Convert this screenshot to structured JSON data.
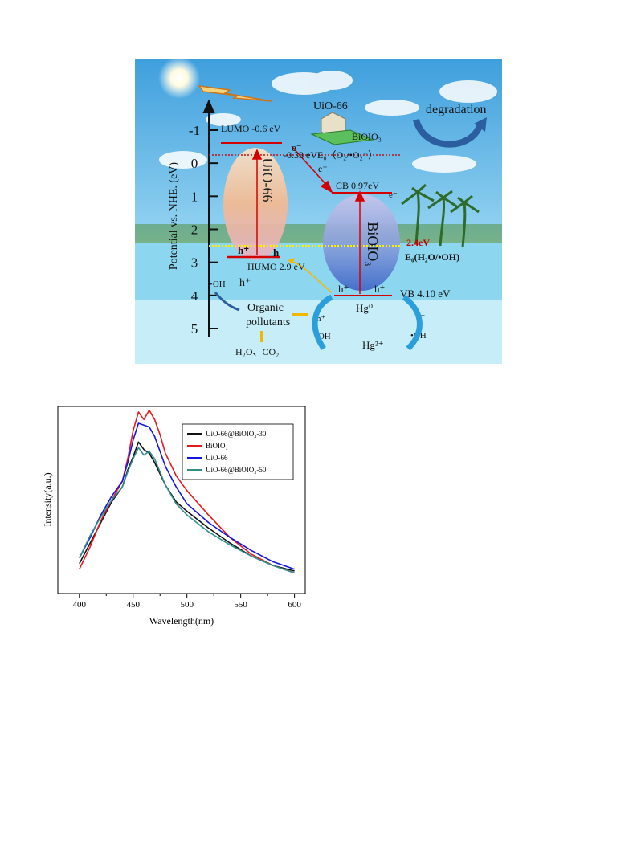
{
  "scheme": {
    "axis_label": "Potential vs. NHE. (eV)",
    "ticks": [
      "-1",
      "0",
      "1",
      "2",
      "3",
      "4",
      "5"
    ],
    "uio66_label": "UiO-66",
    "uio66_top_label": "UiO-66",
    "bioio3_particle_label": "BiOIO₃",
    "bioio3_label": "BiOIO₃",
    "lumo": "LUMO -0.6 eV",
    "humo": "HUMO 2.9 eV",
    "cb": "CB 0.97eV",
    "vb": "VB 4.10 eV",
    "o2_level": "-0.33 eVE₀（O₂/•O₂⁻）",
    "h2o_value": "2.4eV",
    "h2o_level": "E₀(H₂O/•OH)",
    "degradation": "degradation",
    "electron": "e⁻",
    "hole": "h⁺",
    "hole_bold": "h⁺",
    "h_bold": "h",
    "oh_radical": "•OH",
    "organic": "Organic",
    "pollutants": "pollutants",
    "products": "H₂O、CO₂",
    "hg0": "Hg⁰",
    "hg2": "Hg²⁺",
    "colors": {
      "sky": "#5fb3e6",
      "sea": "#8fd3ef",
      "level_red": "#d40000",
      "arrow_blue": "#2a9fdc"
    }
  },
  "chart_data": {
    "type": "line",
    "xlabel": "Wavelength(nm)",
    "ylabel": "Intensity(a.u.)",
    "xlim": [
      380,
      610
    ],
    "ylim": [
      0,
      1
    ],
    "xticks": [
      400,
      450,
      500,
      550,
      600
    ],
    "legend_position": "top-right",
    "x": [
      400,
      410,
      420,
      430,
      440,
      445,
      450,
      455,
      460,
      465,
      470,
      475,
      480,
      490,
      500,
      520,
      540,
      560,
      580,
      600
    ],
    "series": [
      {
        "name": "UiO-66@BiOIO₃-30",
        "color": "#111111",
        "values": [
          0.16,
          0.27,
          0.38,
          0.49,
          0.57,
          0.66,
          0.73,
          0.81,
          0.77,
          0.75,
          0.7,
          0.64,
          0.58,
          0.49,
          0.44,
          0.35,
          0.27,
          0.2,
          0.15,
          0.12
        ]
      },
      {
        "name": "BiOIO₃",
        "color": "#e8191c",
        "values": [
          0.13,
          0.25,
          0.39,
          0.5,
          0.6,
          0.72,
          0.87,
          0.97,
          0.93,
          0.98,
          0.93,
          0.85,
          0.75,
          0.63,
          0.55,
          0.42,
          0.3,
          0.21,
          0.15,
          0.11
        ]
      },
      {
        "name": "UiO-66",
        "color": "#1414e6",
        "values": [
          0.19,
          0.3,
          0.42,
          0.52,
          0.6,
          0.7,
          0.82,
          0.91,
          0.9,
          0.89,
          0.84,
          0.76,
          0.68,
          0.57,
          0.48,
          0.38,
          0.3,
          0.23,
          0.17,
          0.13
        ]
      },
      {
        "name": "UiO-66@BiOIO₃-50",
        "color": "#2f8f8a",
        "values": [
          0.19,
          0.31,
          0.41,
          0.5,
          0.57,
          0.65,
          0.72,
          0.78,
          0.74,
          0.76,
          0.72,
          0.65,
          0.58,
          0.48,
          0.42,
          0.33,
          0.26,
          0.2,
          0.15,
          0.11
        ]
      }
    ]
  }
}
